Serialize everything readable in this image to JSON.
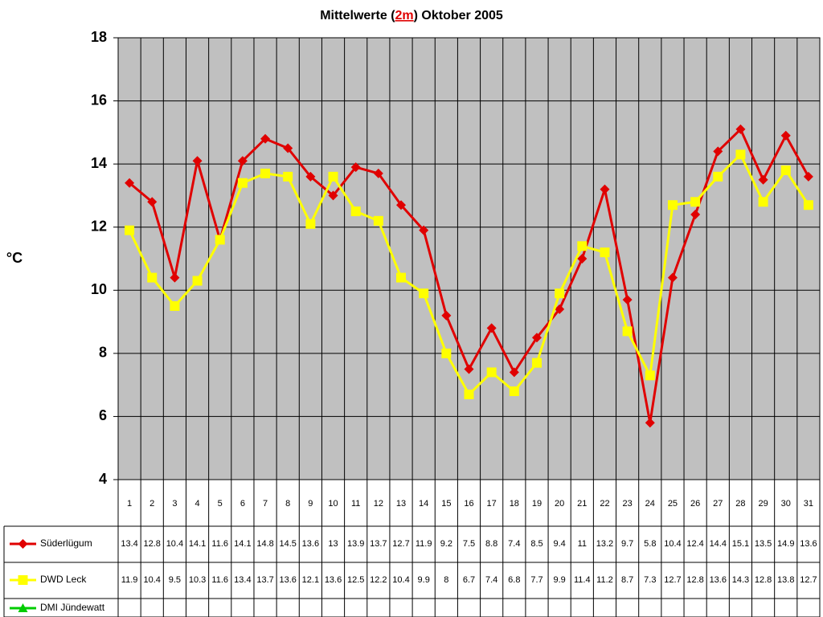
{
  "chart_data": {
    "type": "line",
    "title": [
      "Mittelwerte (",
      "2m",
      ") Oktober 2005"
    ],
    "ylabel": "°C",
    "categories": [
      "1",
      "2",
      "3",
      "4",
      "5",
      "6",
      "7",
      "8",
      "9",
      "10",
      "11",
      "12",
      "13",
      "14",
      "15",
      "16",
      "17",
      "18",
      "19",
      "20",
      "21",
      "22",
      "23",
      "24",
      "25",
      "26",
      "27",
      "28",
      "29",
      "30",
      "31"
    ],
    "series": [
      {
        "name": "Süderlügum",
        "color": "#e00000",
        "marker": "diamond",
        "values": [
          13.4,
          12.8,
          10.4,
          14.1,
          11.6,
          14.1,
          14.8,
          14.5,
          13.6,
          13,
          13.9,
          13.7,
          12.7,
          11.9,
          9.2,
          7.5,
          8.8,
          7.4,
          8.5,
          9.4,
          11,
          13.2,
          9.7,
          5.8,
          10.4,
          12.4,
          14.4,
          15.1,
          13.5,
          14.9,
          13.6
        ]
      },
      {
        "name": "DWD Leck",
        "color": "#ffff00",
        "marker": "square",
        "values": [
          11.9,
          10.4,
          9.5,
          10.3,
          11.6,
          13.4,
          13.7,
          13.6,
          12.1,
          13.6,
          12.5,
          12.2,
          10.4,
          9.9,
          8,
          6.7,
          7.4,
          6.8,
          7.7,
          9.9,
          11.4,
          11.2,
          8.7,
          7.3,
          12.7,
          12.8,
          13.6,
          14.3,
          12.8,
          13.8,
          12.7
        ]
      },
      {
        "name": "DMI Jündewatt",
        "color": "#00cc00",
        "marker": "triangle",
        "values": [
          null,
          null,
          null,
          null,
          null,
          null,
          null,
          null,
          null,
          null,
          null,
          null,
          null,
          null,
          null,
          null,
          null,
          null,
          null,
          null,
          null,
          null,
          null,
          null,
          null,
          null,
          null,
          null,
          null,
          null,
          null
        ]
      }
    ],
    "ylim": [
      4,
      18
    ],
    "yticks": [
      4,
      6,
      8,
      10,
      12,
      14,
      16,
      18
    ],
    "grid": true
  }
}
